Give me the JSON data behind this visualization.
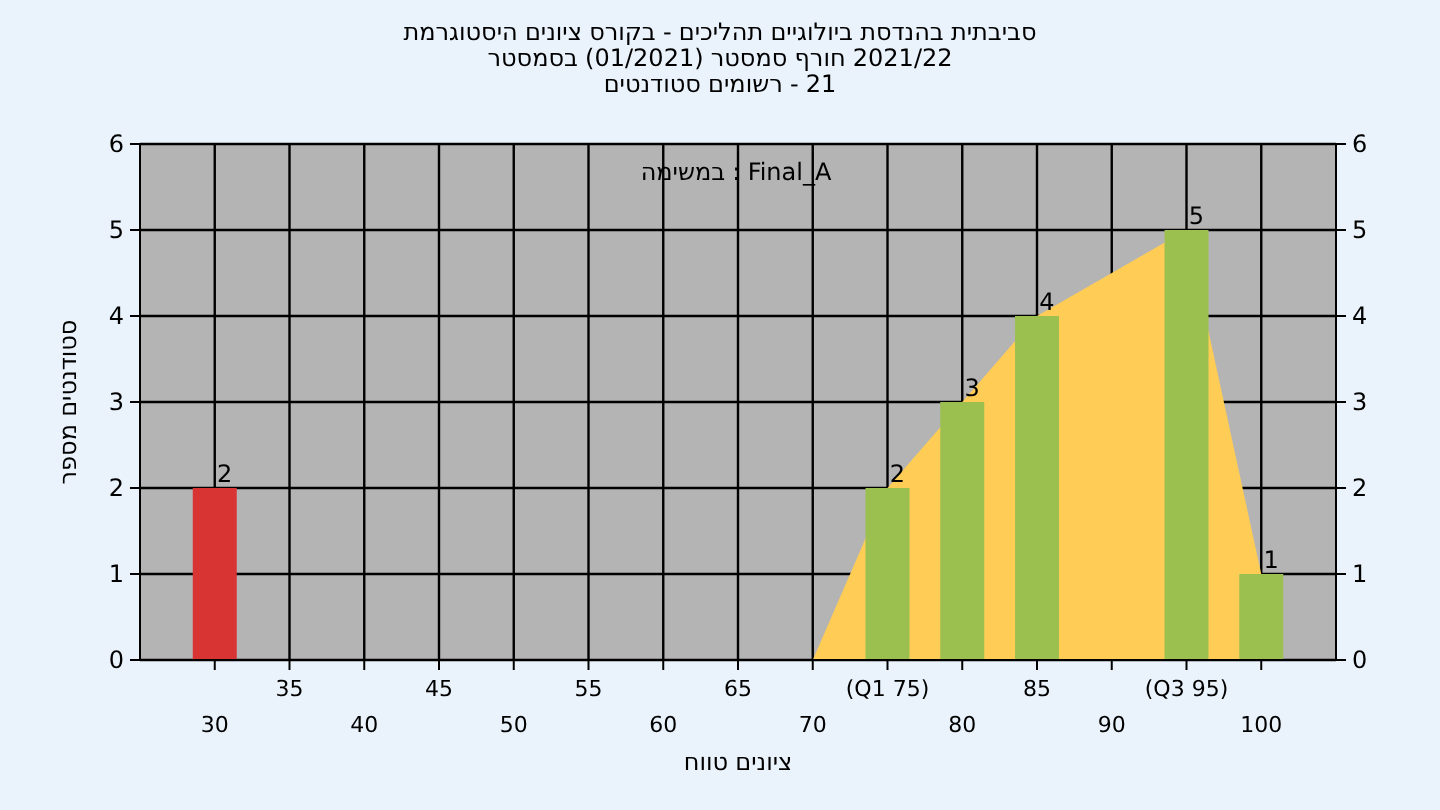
{
  "chart_data": {
    "type": "bar",
    "title": "היסטוגרמת ציונים בקורס - תהליכים ביולוגיים בהנדסת סביבתית",
    "subtitle": "בסמסטר (01/2021) סמסטר חורף 2021/22\nסטודנטים רשומים - 21",
    "xlabel": "טווח ציונים",
    "ylabel": "מספר סטודנטים",
    "annotations": [
      "במשימה : Final_A"
    ],
    "categories": [
      "30",
      "35",
      "40",
      "45",
      "50",
      "55",
      "60",
      "65",
      "70",
      "(Q1 75)",
      "80",
      "85",
      "90",
      "(Q3 95)",
      "100"
    ],
    "series": [
      {
        "type": "area",
        "color": "#ffcc55",
        "values": [
          null,
          null,
          null,
          null,
          null,
          null,
          null,
          null,
          0,
          2,
          3,
          4,
          null,
          5,
          1
        ]
      },
      {
        "colors": [
          "#d93434",
          "#9cc050",
          "#9cc050",
          "#9cc050",
          "#9cc050",
          "#9cc050",
          "#9cc050",
          "#9cc050",
          "#9cc050",
          "#9cc050",
          "#9cc050",
          "#9cc050",
          "#9cc050",
          "#9cc050",
          "#9cc050"
        ],
        "values": [
          2,
          0,
          0,
          0,
          0,
          0,
          0,
          0,
          0,
          2,
          3,
          4,
          0,
          5,
          1
        ],
        "value_labels": [
          "2",
          null,
          null,
          null,
          null,
          null,
          null,
          null,
          null,
          "2",
          "3",
          "4",
          null,
          "5",
          "1"
        ]
      }
    ],
    "ylim": [
      0,
      6
    ],
    "yticks": [
      0,
      1,
      2,
      3,
      4,
      5,
      6
    ],
    "y2lim": [
      0,
      6
    ],
    "y2ticks": [
      0,
      1,
      2,
      3,
      4,
      5,
      6
    ],
    "grid": true
  }
}
